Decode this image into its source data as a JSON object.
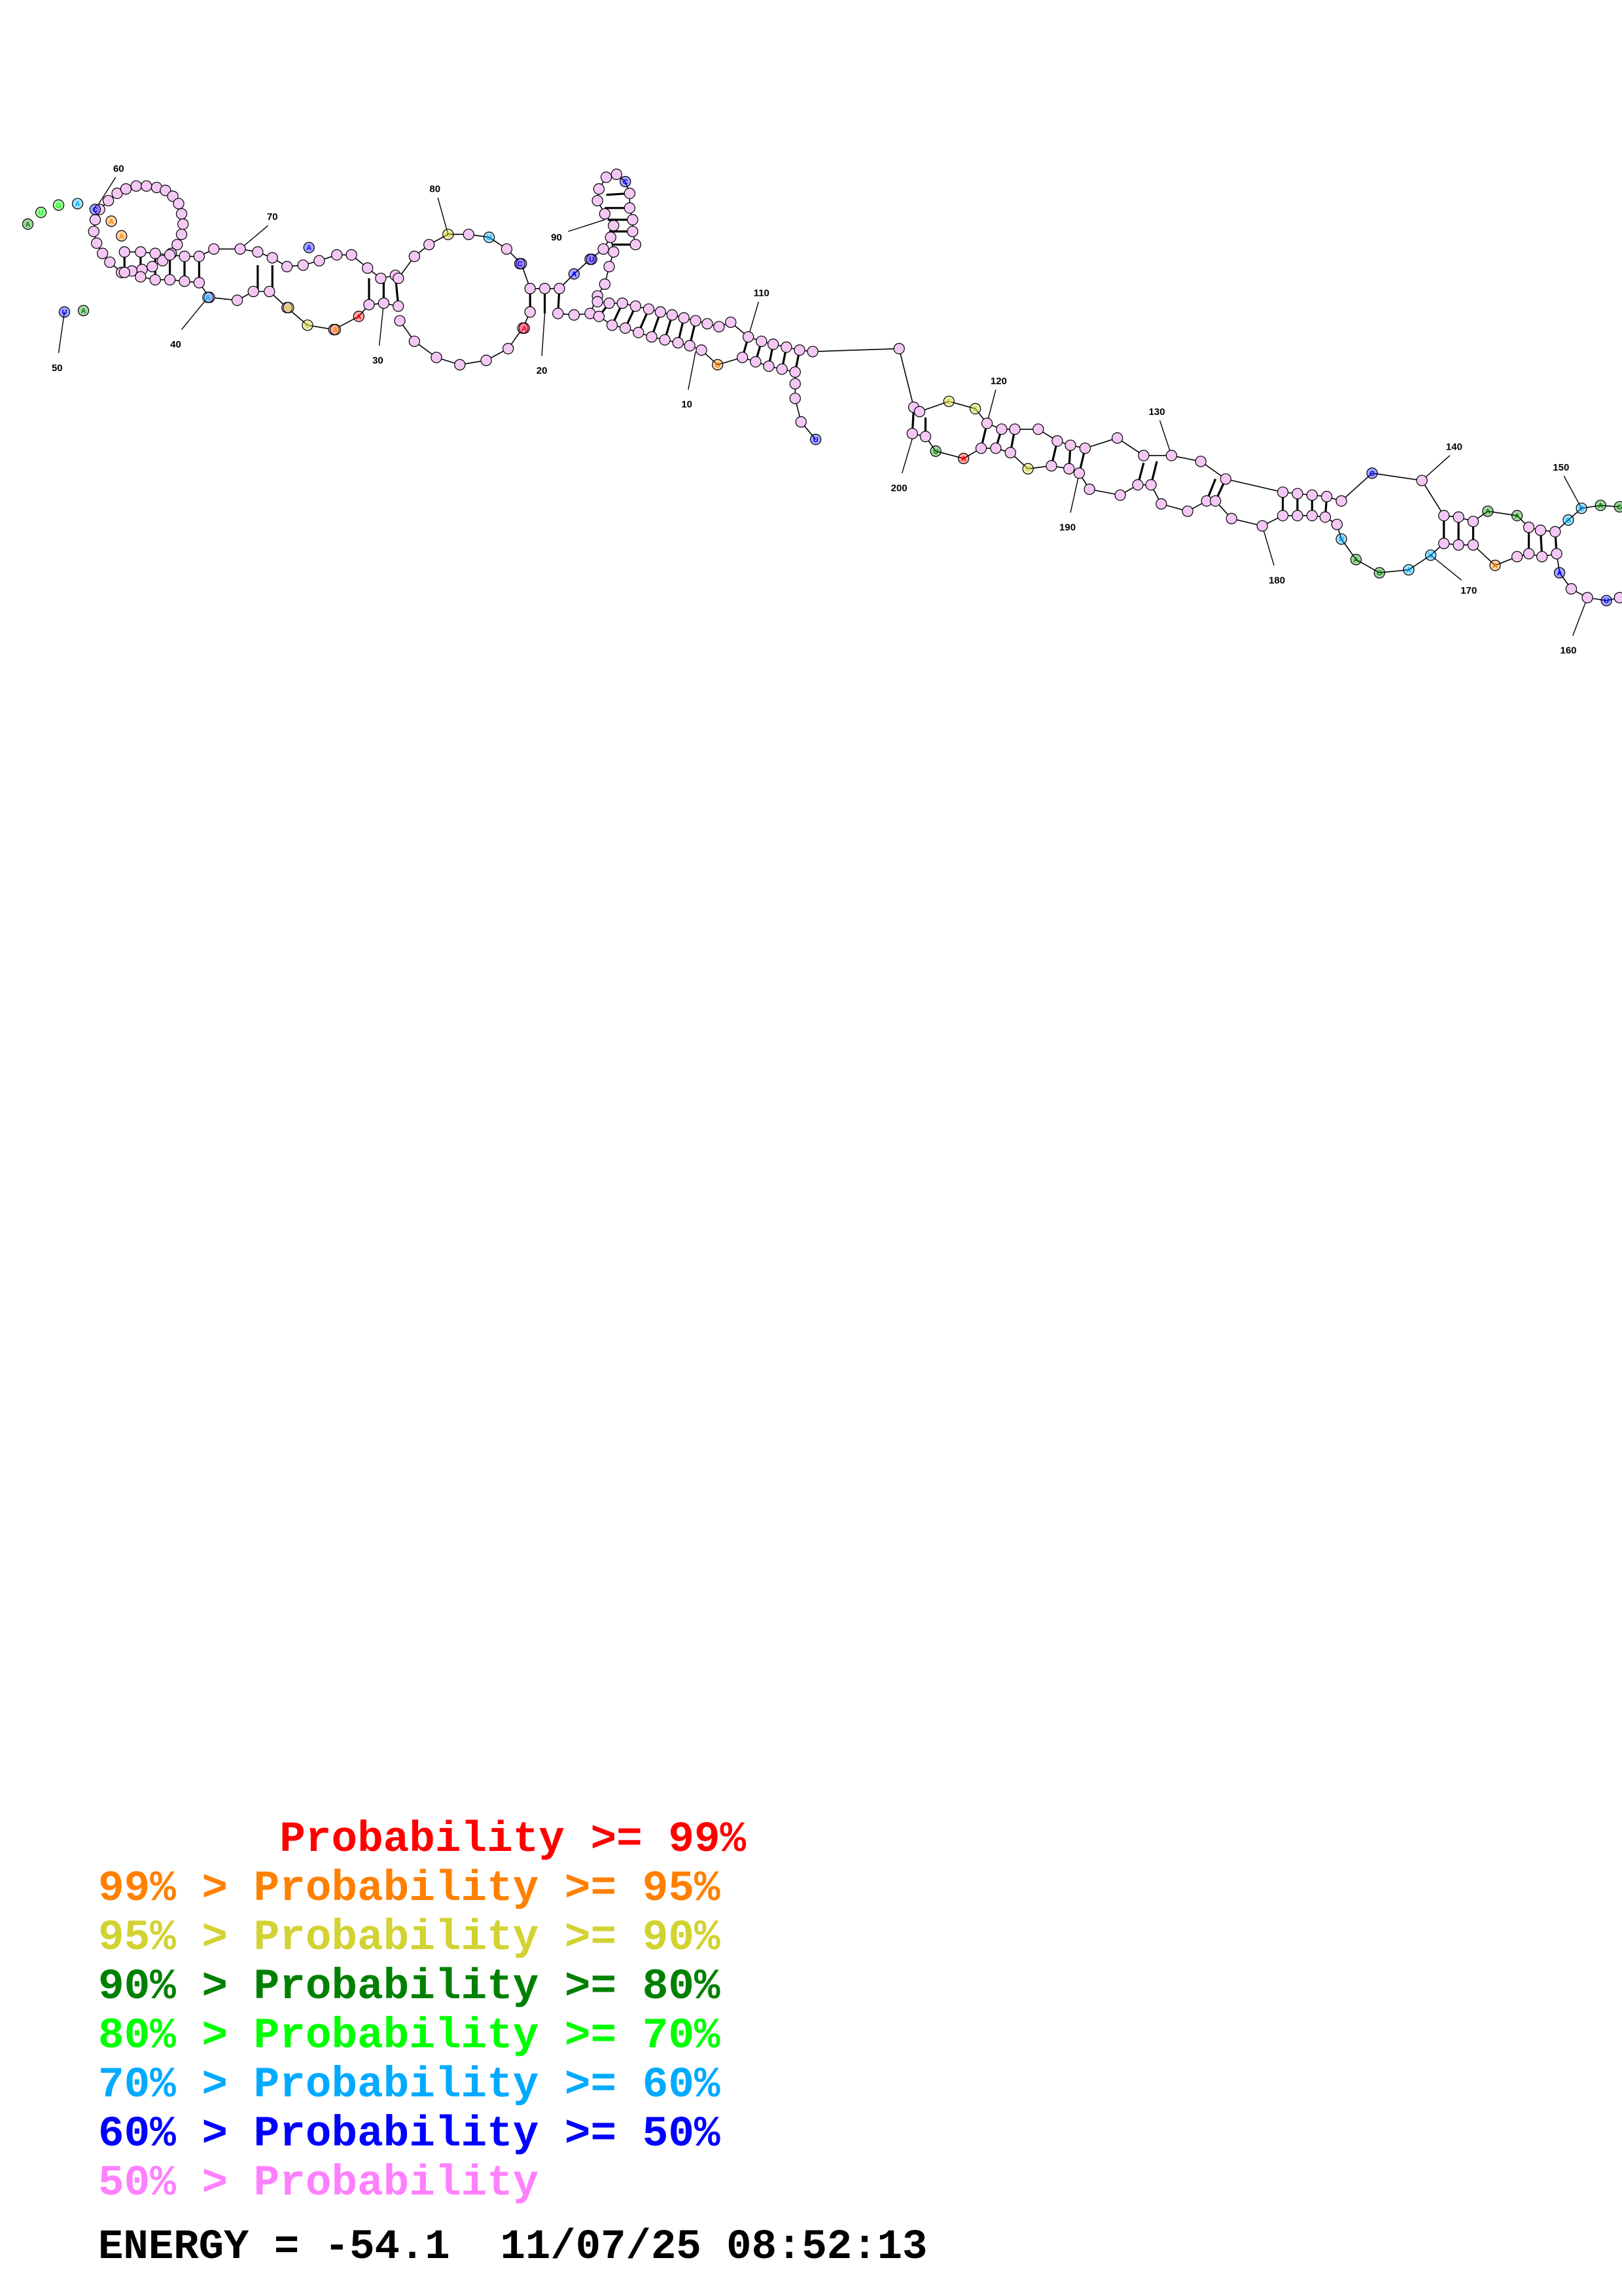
{
  "colors": {
    "p99": "#ff0000",
    "p95": "#ff8000",
    "p90": "#d2d232",
    "p80": "#008000",
    "p70": "#00ff00",
    "p60": "#00aaff",
    "p50": "#0000ff",
    "plow": "#ff80ff",
    "energy": "#000000"
  },
  "legend": [
    {
      "text": "       Probability >= 99%",
      "color_key": "p99"
    },
    {
      "text": "99% > Probability >= 95%",
      "color_key": "p95"
    },
    {
      "text": "95% > Probability >= 90%",
      "color_key": "p90"
    },
    {
      "text": "90% > Probability >= 80%",
      "color_key": "p80"
    },
    {
      "text": "80% > Probability >= 70%",
      "color_key": "p70"
    },
    {
      "text": "70% > Probability >= 60%",
      "color_key": "p60"
    },
    {
      "text": "60% > Probability >= 50%",
      "color_key": "p50"
    },
    {
      "text": "50% > Probability",
      "color_key": "plow"
    }
  ],
  "energy_label": "ENERGY = ",
  "energy_value": "-54.1",
  "timestamp": "11/07/25 08:52:13",
  "position_labels": [
    "10",
    "20",
    "30",
    "40",
    "50",
    "60",
    "70",
    "80",
    "90",
    "110",
    "120",
    "130",
    "140",
    "150",
    "160",
    "170",
    "180",
    "190",
    "200"
  ]
}
